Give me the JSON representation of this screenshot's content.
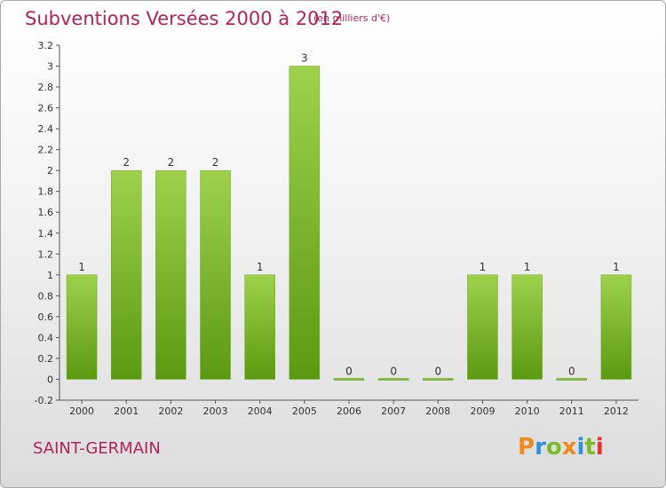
{
  "header": {
    "title": "Subventions Versées 2000 à 2012",
    "subtitle": "(en milliers d'€)"
  },
  "footer": {
    "place": "SAINT-GERMAIN",
    "logo": {
      "text": "Proxiti",
      "letter_colors": [
        "#f08a1c",
        "#2f8fd8",
        "#7cbb2c",
        "#f08a1c",
        "#2f8fd8",
        "#7cbb2c",
        "#e8312e"
      ]
    }
  },
  "chart_data": {
    "type": "bar",
    "categories": [
      "2000",
      "2001",
      "2002",
      "2003",
      "2004",
      "2005",
      "2006",
      "2007",
      "2008",
      "2009",
      "2010",
      "2011",
      "2012"
    ],
    "values": [
      1,
      2,
      2,
      2,
      1,
      3,
      0,
      0,
      0,
      1,
      1,
      0,
      1
    ],
    "data_labels": [
      "1",
      "2",
      "2",
      "2",
      "1",
      "3",
      "0",
      "0",
      "0",
      "1",
      "1",
      "0",
      "1"
    ],
    "ylim": [
      -0.2,
      3.2
    ],
    "y_ticks": [
      "-0.2",
      "0",
      "0.2",
      "0.4",
      "0.6",
      "0.8",
      "1",
      "1.2",
      "1.4",
      "1.6",
      "1.8",
      "2",
      "2.2",
      "2.4",
      "2.6",
      "2.8",
      "3",
      "3.2"
    ],
    "grid": false,
    "bar_color": "#7cba2c"
  }
}
